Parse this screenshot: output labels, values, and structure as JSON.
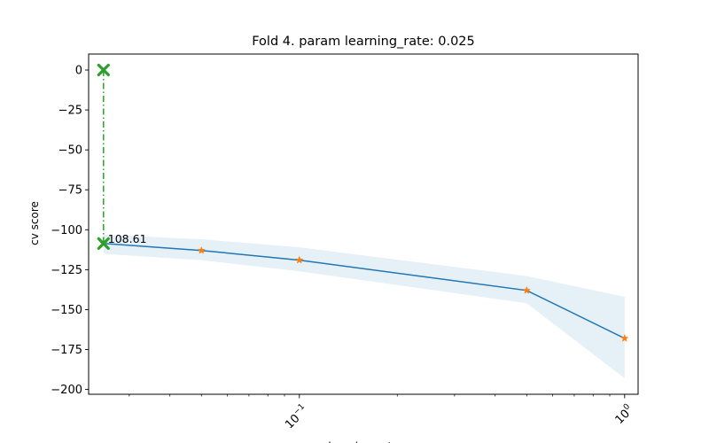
{
  "chart_data": {
    "type": "line",
    "title": "Fold 4. param learning_rate: 0.025",
    "xlabel": "learning_rate",
    "ylabel": "cv score",
    "xscale": "log",
    "xlim": [
      0.0225,
      1.1
    ],
    "ylim": [
      -203,
      10
    ],
    "grid": false,
    "yticks": [
      0,
      -25,
      -50,
      -75,
      -100,
      -125,
      -150,
      -175,
      -200
    ],
    "xticks_major": [
      {
        "value": 0.1,
        "base": "10",
        "exp": "−1"
      },
      {
        "value": 1,
        "base": "10",
        "exp": "0"
      }
    ],
    "series": [
      {
        "x": [
          0.025,
          0.05,
          0.1,
          0.5,
          1.0
        ],
        "y": [
          -108.61,
          -113,
          -119,
          -138,
          -168
        ],
        "band_upper": [
          -103,
          -106,
          -111,
          -129,
          -142
        ],
        "band_lower": [
          -115,
          -119,
          -126,
          -146,
          -193
        ],
        "color": "#1f77b4",
        "band_color": "#1f77b4",
        "marker_color": "#ff7f0e"
      }
    ],
    "best": {
      "x": 0.025,
      "y": -108.61,
      "label": "108.61",
      "top_y": 0,
      "color": "#2ca02c"
    }
  }
}
